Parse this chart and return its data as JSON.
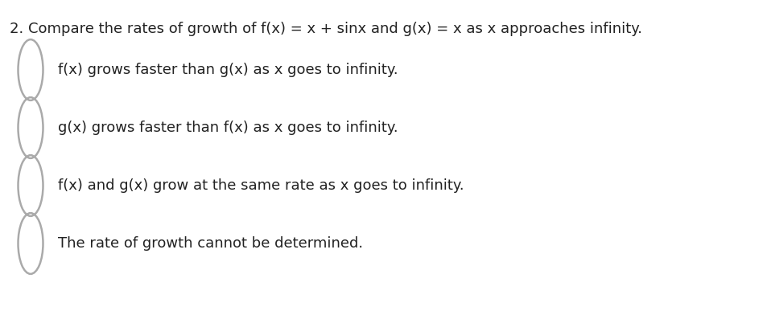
{
  "background_color": "#ffffff",
  "question_text": "2. Compare the rates of growth of f(x) = x + sinx and g(x) = x as x approaches infinity.",
  "question_fontsize": 13.0,
  "question_color": "#222222",
  "options": [
    "f(x) grows faster than g(x) as x goes to infinity.",
    "g(x) grows faster than f(x) as x goes to infinity.",
    "f(x) and g(x) grow at the same rate as x goes to infinity.",
    "The rate of growth cannot be determined."
  ],
  "option_fontsize": 13.0,
  "option_color": "#222222",
  "circle_color": "#aaaaaa",
  "circle_linewidth": 1.8,
  "font_family": "DejaVu Sans",
  "fig_width": 9.58,
  "fig_height": 3.92,
  "dpi": 100
}
